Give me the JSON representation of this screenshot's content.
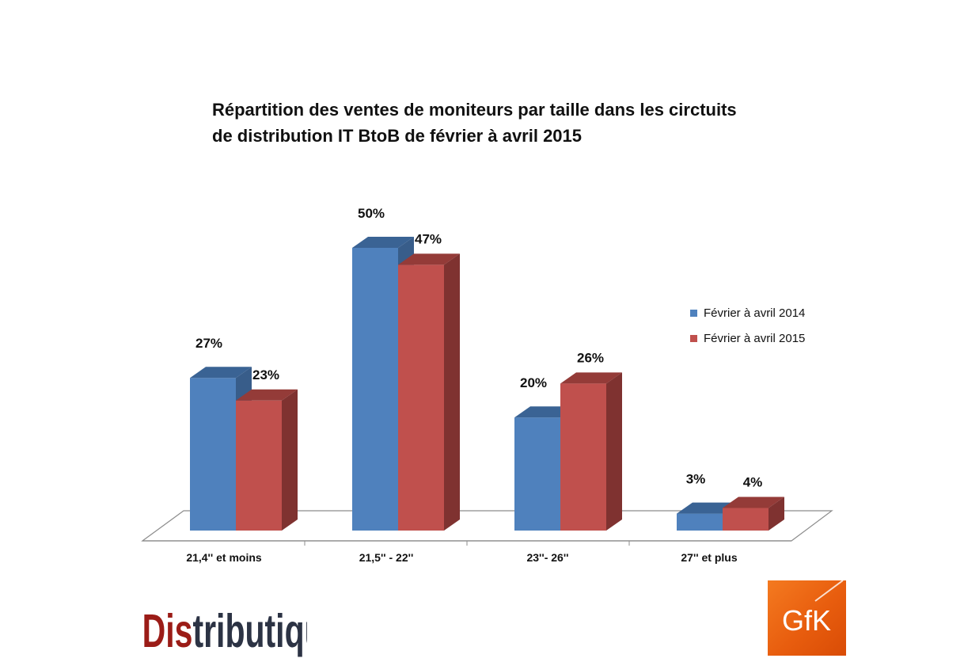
{
  "title_lines": [
    "Répartition des ventes de moniteurs par taille dans les circtuits",
    "de distribution IT BtoB de février à avril 2015"
  ],
  "chart_data": {
    "type": "bar",
    "title": "Répartition des ventes de moniteurs par taille dans les circtuits de distribution IT BtoB de février à avril 2015",
    "categories": [
      "21,4'' et moins",
      "21,5'' - 22''",
      "23''- 26''",
      "27'' et plus"
    ],
    "series": [
      {
        "name": "Février à avril 2014",
        "values": [
          27,
          50,
          20,
          3
        ],
        "labels": [
          "27%",
          "50%",
          "20%",
          "3%"
        ],
        "color": "#4f81bd",
        "top_color": "#3a6394",
        "side_color": "#385d8a"
      },
      {
        "name": "Février à avril 2015",
        "values": [
          23,
          47,
          26,
          4
        ],
        "labels": [
          "23%",
          "47%",
          "26%",
          "4%"
        ],
        "color": "#c0504d",
        "top_color": "#943b38",
        "side_color": "#7f3230"
      }
    ],
    "ylim": [
      0,
      50
    ],
    "grid": false,
    "legend_position": "right",
    "three_d": true
  },
  "logos": {
    "distributique_a": "Dis",
    "distributique_b": "tributique",
    "distributique_color_a": "#9b1c17",
    "distributique_color_b": "#2c3344",
    "gfk": "GfK"
  }
}
